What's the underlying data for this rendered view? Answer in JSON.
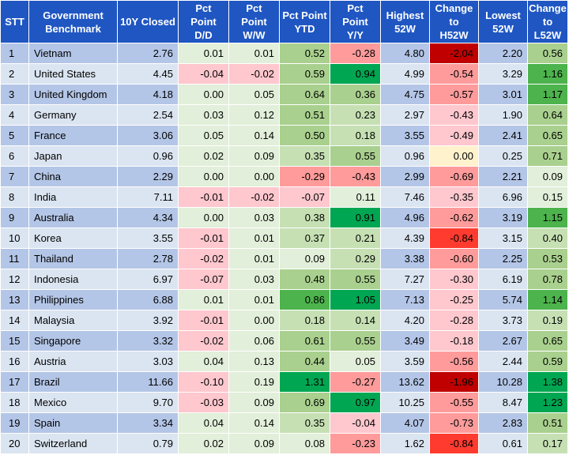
{
  "chart_data": {
    "type": "table",
    "columns": [
      [
        "STT"
      ],
      [
        "Government",
        "Benchmark"
      ],
      [
        "10Y Closed"
      ],
      [
        "Pct",
        "Point",
        "D/D"
      ],
      [
        "Pct",
        "Point",
        "W/W"
      ],
      [
        "Pct Point",
        "YTD"
      ],
      [
        "Pct",
        "Point",
        "Y/Y"
      ],
      [
        "Highest",
        "52W"
      ],
      [
        "Change",
        "to",
        "H52W"
      ],
      [
        "Lowest",
        "52W"
      ],
      [
        "Change",
        "to",
        "L52W"
      ]
    ],
    "rows": [
      [
        "1",
        "Vietnam",
        "2.76",
        "0.01",
        "0.01",
        "0.52",
        "-0.28",
        "4.80",
        "-2.04",
        "2.20",
        "0.56"
      ],
      [
        "2",
        "United States",
        "4.45",
        "-0.04",
        "-0.02",
        "0.59",
        "0.94",
        "4.99",
        "-0.54",
        "3.29",
        "1.16"
      ],
      [
        "3",
        "United Kingdom",
        "4.18",
        "0.00",
        "0.05",
        "0.64",
        "0.36",
        "4.75",
        "-0.57",
        "3.01",
        "1.17"
      ],
      [
        "4",
        "Germany",
        "2.54",
        "0.03",
        "0.12",
        "0.51",
        "0.23",
        "2.97",
        "-0.43",
        "1.90",
        "0.64"
      ],
      [
        "5",
        "France",
        "3.06",
        "0.05",
        "0.14",
        "0.50",
        "0.18",
        "3.55",
        "-0.49",
        "2.41",
        "0.65"
      ],
      [
        "6",
        "Japan",
        "0.96",
        "0.02",
        "0.09",
        "0.35",
        "0.55",
        "0.96",
        "0.00",
        "0.25",
        "0.71"
      ],
      [
        "7",
        "China",
        "2.29",
        "0.00",
        "0.00",
        "-0.29",
        "-0.43",
        "2.99",
        "-0.69",
        "2.21",
        "0.09"
      ],
      [
        "8",
        "India",
        "7.11",
        "-0.01",
        "-0.02",
        "-0.07",
        "0.11",
        "7.46",
        "-0.35",
        "6.96",
        "0.15"
      ],
      [
        "9",
        "Australia",
        "4.34",
        "0.00",
        "0.03",
        "0.38",
        "0.91",
        "4.96",
        "-0.62",
        "3.19",
        "1.15"
      ],
      [
        "10",
        "Korea",
        "3.55",
        "-0.01",
        "0.01",
        "0.37",
        "0.21",
        "4.39",
        "-0.84",
        "3.15",
        "0.40"
      ],
      [
        "11",
        "Thailand",
        "2.78",
        "-0.02",
        "0.01",
        "0.09",
        "0.29",
        "3.38",
        "-0.60",
        "2.25",
        "0.53"
      ],
      [
        "12",
        "Indonesia",
        "6.97",
        "-0.07",
        "0.03",
        "0.48",
        "0.55",
        "7.27",
        "-0.30",
        "6.19",
        "0.78"
      ],
      [
        "13",
        "Philippines",
        "6.88",
        "0.01",
        "0.01",
        "0.86",
        "1.05",
        "7.13",
        "-0.25",
        "5.74",
        "1.14"
      ],
      [
        "14",
        "Malaysia",
        "3.92",
        "-0.01",
        "0.00",
        "0.18",
        "0.14",
        "4.20",
        "-0.28",
        "3.73",
        "0.19"
      ],
      [
        "15",
        "Singapore",
        "3.32",
        "-0.02",
        "0.06",
        "0.61",
        "0.55",
        "3.49",
        "-0.18",
        "2.67",
        "0.65"
      ],
      [
        "16",
        "Austria",
        "3.03",
        "0.04",
        "0.13",
        "0.44",
        "0.05",
        "3.59",
        "-0.56",
        "2.44",
        "0.59"
      ],
      [
        "17",
        "Brazil",
        "11.66",
        "-0.10",
        "0.19",
        "1.31",
        "-0.27",
        "13.62",
        "-1.96",
        "10.28",
        "1.38"
      ],
      [
        "18",
        "Mexico",
        "9.70",
        "-0.03",
        "0.09",
        "0.69",
        "0.97",
        "10.25",
        "-0.55",
        "8.47",
        "1.23"
      ],
      [
        "19",
        "Spain",
        "3.34",
        "0.04",
        "0.14",
        "0.35",
        "-0.04",
        "4.07",
        "-0.73",
        "2.83",
        "0.51"
      ],
      [
        "20",
        "Switzerland",
        "0.79",
        "0.02",
        "0.09",
        "0.08",
        "-0.23",
        "1.62",
        "-0.84",
        "0.61",
        "0.17"
      ]
    ],
    "colors": {
      "header": "#1f56c2",
      "row_a": "#b4c6e7",
      "row_b": "#dbe5f1",
      "neutral": "#fff2cc",
      "negative": [
        "#ffc7ce",
        "#ff9b9b",
        "#ff3b30",
        "#c00000"
      ],
      "positive": [
        "#e2efda",
        "#c6e0b4",
        "#a9d08e",
        "#4db34d",
        "#00a651"
      ]
    }
  }
}
